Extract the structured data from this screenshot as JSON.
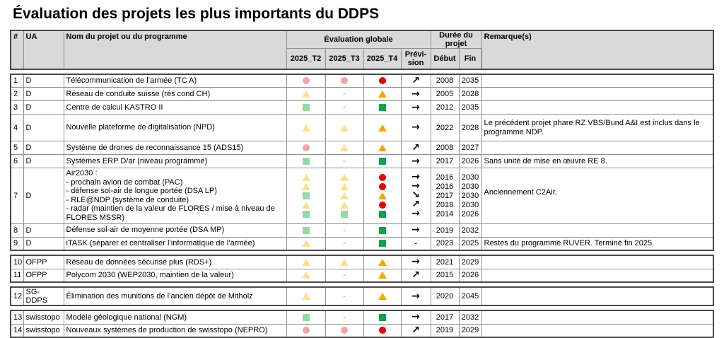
{
  "title": "Évaluation des projets les plus importants du DDPS",
  "header": {
    "num": "#",
    "ua": "UA",
    "name": "Nom du projet ou du programme",
    "eval_group": "Évaluation globale",
    "t2": "2025_T2",
    "t3": "2025_T3",
    "t4": "2025_T4",
    "prevision": "Prévi-sion",
    "duration_group": "Durée du projet",
    "start": "Début",
    "end": "Fin",
    "remark": "Remarque(s)"
  },
  "colors": {
    "red-full": "#e60000",
    "red-faded": "#f4a5a1",
    "yellow-full": "#f7a600",
    "yellow-faded": "#fbe091",
    "green-full": "#0fa24b",
    "green-faded": "#94d9a8"
  },
  "arrows": {
    "up": "↗",
    "right": "→",
    "down": "↘",
    "dash": "-"
  },
  "groups": [
    {
      "rows": [
        {
          "num": "1",
          "ua": "D",
          "name": [
            "Télécommunication de l’armée (TC A)"
          ],
          "t2": [
            "red-faded"
          ],
          "t3": [
            "red-faded"
          ],
          "t4": [
            "red-full"
          ],
          "prev": [
            "up"
          ],
          "start": [
            "2008"
          ],
          "end": [
            "2035"
          ],
          "remark": ""
        },
        {
          "num": "2",
          "ua": "D",
          "name": [
            "Réseau de conduite suisse (rés cond CH)"
          ],
          "t2": [
            "yellow-faded"
          ],
          "t3": [
            "dash"
          ],
          "t4": [
            "yellow-full"
          ],
          "prev": [
            "right"
          ],
          "start": [
            "2005"
          ],
          "end": [
            "2028"
          ],
          "remark": ""
        },
        {
          "num": "3",
          "ua": "D",
          "name": [
            "Centre de calcul KASTRO II"
          ],
          "t2": [
            "green-faded"
          ],
          "t3": [
            "dash"
          ],
          "t4": [
            "green-full"
          ],
          "prev": [
            "right"
          ],
          "start": [
            "2012"
          ],
          "end": [
            "2035"
          ],
          "remark": ""
        },
        {
          "num": "4",
          "ua": "D",
          "name": [
            "Nouvelle plateforme de digitalisation (NPD)"
          ],
          "t2": [
            "yellow-faded"
          ],
          "t3": [
            "yellow-faded"
          ],
          "t4": [
            "yellow-full"
          ],
          "prev": [
            "right"
          ],
          "start": [
            "2022"
          ],
          "end": [
            "2028"
          ],
          "remark": "Le précédent projet phare RZ VBS/Bund A&I est inclus dans le programme NDP.",
          "height": 38
        },
        {
          "num": "5",
          "ua": "D",
          "name": [
            "Système de drones de reconnaissance 15 (ADS15)"
          ],
          "t2": [
            "red-faded"
          ],
          "t3": [
            "yellow-faded"
          ],
          "t4": [
            "yellow-full"
          ],
          "prev": [
            "up"
          ],
          "start": [
            "2008"
          ],
          "end": [
            "2027"
          ],
          "remark": ""
        },
        {
          "num": "6",
          "ua": "D",
          "name": [
            "Systèmes ERP D/ar (niveau programme)"
          ],
          "t2": [
            "green-faded"
          ],
          "t3": [
            "dash"
          ],
          "t4": [
            "green-full"
          ],
          "prev": [
            "right"
          ],
          "start": [
            "2017"
          ],
          "end": [
            "2026"
          ],
          "remark": "Sans unité de mise en œuvre RE 8."
        },
        {
          "num": "7",
          "ua": "D",
          "name": [
            "Air2030 :",
            "- prochain avion de combat (PAC)",
            "- défense sol-air de longue portée (DSA LP)",
            "- RLE@NDP (système de conduite)",
            "- radar (maintien de la valeur de FLORES / mise à niveau de FLORES MSSR)"
          ],
          "t2": [
            "yellow-faded",
            "yellow-faded",
            "green-faded",
            "yellow-faded",
            "green-faded"
          ],
          "t3": [
            "yellow-faded",
            "yellow-faded",
            "yellow-faded",
            "yellow-faded",
            "green-faded"
          ],
          "t4": [
            "red-full",
            "red-full",
            "yellow-full",
            "red-full",
            "green-full"
          ],
          "prev": [
            "right",
            "right",
            "down",
            "up",
            "right"
          ],
          "start": [
            "2016",
            "2016",
            "2017",
            "2018",
            "2014"
          ],
          "end": [
            "2030",
            "2030",
            "2030",
            "2030",
            "2026"
          ],
          "remark": "Anciennement C2Air.",
          "height": 77,
          "remark_bottom": true
        },
        {
          "num": "8",
          "ua": "D",
          "name": [
            "Défense sol-air de moyenne portée (DSA MP)"
          ],
          "t2": [
            "green-faded"
          ],
          "t3": [
            "dash"
          ],
          "t4": [
            "green-full"
          ],
          "prev": [
            "right"
          ],
          "start": [
            "2019"
          ],
          "end": [
            "2032"
          ],
          "remark": ""
        },
        {
          "num": "9",
          "ua": "D",
          "name": [
            "iTASK (séparer et centraliser l’informatique de l’armée)"
          ],
          "t2": [
            "yellow-faded"
          ],
          "t3": [
            "dash"
          ],
          "t4": [
            "green-full"
          ],
          "prev": [
            "dash"
          ],
          "start": [
            "2023"
          ],
          "end": [
            "2025"
          ],
          "remark": "Restes du programme RUVER. Terminé fin 2025."
        }
      ]
    },
    {
      "rows": [
        {
          "num": "10",
          "ua": "OFPP",
          "name": [
            "Réseau de données sécurisé plus (RDS+)"
          ],
          "t2": [
            "yellow-faded"
          ],
          "t3": [
            "yellow-faded"
          ],
          "t4": [
            "yellow-full"
          ],
          "prev": [
            "right"
          ],
          "start": [
            "2021"
          ],
          "end": [
            "2029"
          ],
          "remark": ""
        },
        {
          "num": "11",
          "ua": "OFPP",
          "name": [
            "Polycom 2030 (WEP2030, maintien de la valeur)"
          ],
          "t2": [
            "yellow-faded"
          ],
          "t3": [
            "dash"
          ],
          "t4": [
            "yellow-full"
          ],
          "prev": [
            "up"
          ],
          "start": [
            "2015"
          ],
          "end": [
            "2026"
          ],
          "remark": ""
        }
      ]
    },
    {
      "rows": [
        {
          "num": "12",
          "ua": "SG-DDPS",
          "name": [
            "Élimination des munitions de l’ancien dépôt de Mitholz"
          ],
          "t2": [
            "yellow-faded"
          ],
          "t3": [
            "dash"
          ],
          "t4": [
            "yellow-full"
          ],
          "prev": [
            "right"
          ],
          "start": [
            "2020"
          ],
          "end": [
            "2045"
          ],
          "remark": ""
        }
      ]
    },
    {
      "rows": [
        {
          "num": "13",
          "ua": "swisstopo",
          "name": [
            "Modèle géologique national (NGM)"
          ],
          "t2": [
            "green-faded"
          ],
          "t3": [
            "dash"
          ],
          "t4": [
            "green-full"
          ],
          "prev": [
            "right"
          ],
          "start": [
            "2017"
          ],
          "end": [
            "2032"
          ],
          "remark": ""
        },
        {
          "num": "14",
          "ua": "swisstopo",
          "name": [
            "Nouveaux systèmes de production de swisstopo (NEPRO)"
          ],
          "t2": [
            "red-faded"
          ],
          "t3": [
            "red-faded"
          ],
          "t4": [
            "red-full"
          ],
          "prev": [
            "up"
          ],
          "start": [
            "2019"
          ],
          "end": [
            "2029"
          ],
          "remark": ""
        }
      ]
    }
  ]
}
